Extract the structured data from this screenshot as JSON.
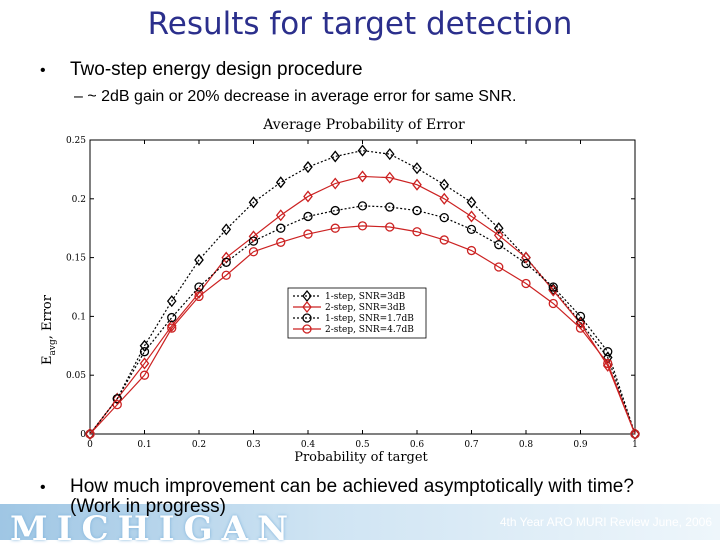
{
  "slide": {
    "title": "Results for target detection",
    "bullet1": "Two-step energy design procedure",
    "sub_bullet": "– ~ 2dB gain or 20% decrease in average error for same SNR.",
    "bullet2_line1": "How much improvement can be achieved asymptotically with time?",
    "bullet2_line2": "(Work in progress)",
    "bullet_glyph": "•",
    "footer_logo": "MICHIGAN",
    "footer_note": "4th Year ARO MURI Review June, 2006"
  },
  "chart_data": {
    "type": "line",
    "title": "Average Probability of Error",
    "xlabel": "Probability of target",
    "ylabel_main": "E",
    "ylabel_sub": "avg",
    "ylabel_rest": ", Error",
    "xlim": [
      0,
      1
    ],
    "ylim": [
      0,
      0.25
    ],
    "x_ticks": [
      "0",
      "0.1",
      "0.2",
      "0.3",
      "0.4",
      "0.5",
      "0.6",
      "0.7",
      "0.8",
      "0.9",
      "1"
    ],
    "y_ticks": [
      "0",
      "0.05",
      "0.1",
      "0.15",
      "0.2",
      "0.25"
    ],
    "grid": false,
    "legend_position": "center-right",
    "x": [
      0,
      0.05,
      0.1,
      0.15,
      0.2,
      0.25,
      0.3,
      0.35,
      0.4,
      0.45,
      0.5,
      0.55,
      0.6,
      0.65,
      0.7,
      0.75,
      0.8,
      0.85,
      0.9,
      0.95,
      1
    ],
    "series": [
      {
        "name": "1-step, SNR=3dB",
        "color": "#000000",
        "marker": "diamond",
        "dash": "dotted",
        "values": [
          0,
          0.03,
          0.075,
          0.113,
          0.148,
          0.174,
          0.197,
          0.214,
          0.227,
          0.236,
          0.241,
          0.238,
          0.226,
          0.212,
          0.197,
          0.175,
          0.15,
          0.123,
          0.095,
          0.065,
          0
        ]
      },
      {
        "name": "2-step, SNR=3dB",
        "color": "#cc2222",
        "marker": "diamond",
        "dash": "solid",
        "values": [
          0,
          0.03,
          0.06,
          0.092,
          0.12,
          0.15,
          0.168,
          0.186,
          0.202,
          0.213,
          0.219,
          0.218,
          0.212,
          0.2,
          0.185,
          0.169,
          0.15,
          0.122,
          0.094,
          0.058,
          0
        ]
      },
      {
        "name": "1-step, SNR=1.7dB",
        "color": "#000000",
        "marker": "circle",
        "dash": "dotted",
        "values": [
          0,
          0.03,
          0.07,
          0.099,
          0.125,
          0.146,
          0.164,
          0.175,
          0.185,
          0.19,
          0.194,
          0.193,
          0.19,
          0.184,
          0.174,
          0.161,
          0.145,
          0.125,
          0.1,
          0.07,
          0
        ]
      },
      {
        "name": "2-step, SNR=4.7dB",
        "color": "#cc2222",
        "marker": "circle",
        "dash": "solid",
        "values": [
          0,
          0.025,
          0.05,
          0.09,
          0.117,
          0.135,
          0.155,
          0.163,
          0.17,
          0.175,
          0.177,
          0.176,
          0.172,
          0.165,
          0.156,
          0.142,
          0.128,
          0.111,
          0.09,
          0.06,
          0
        ]
      }
    ]
  }
}
